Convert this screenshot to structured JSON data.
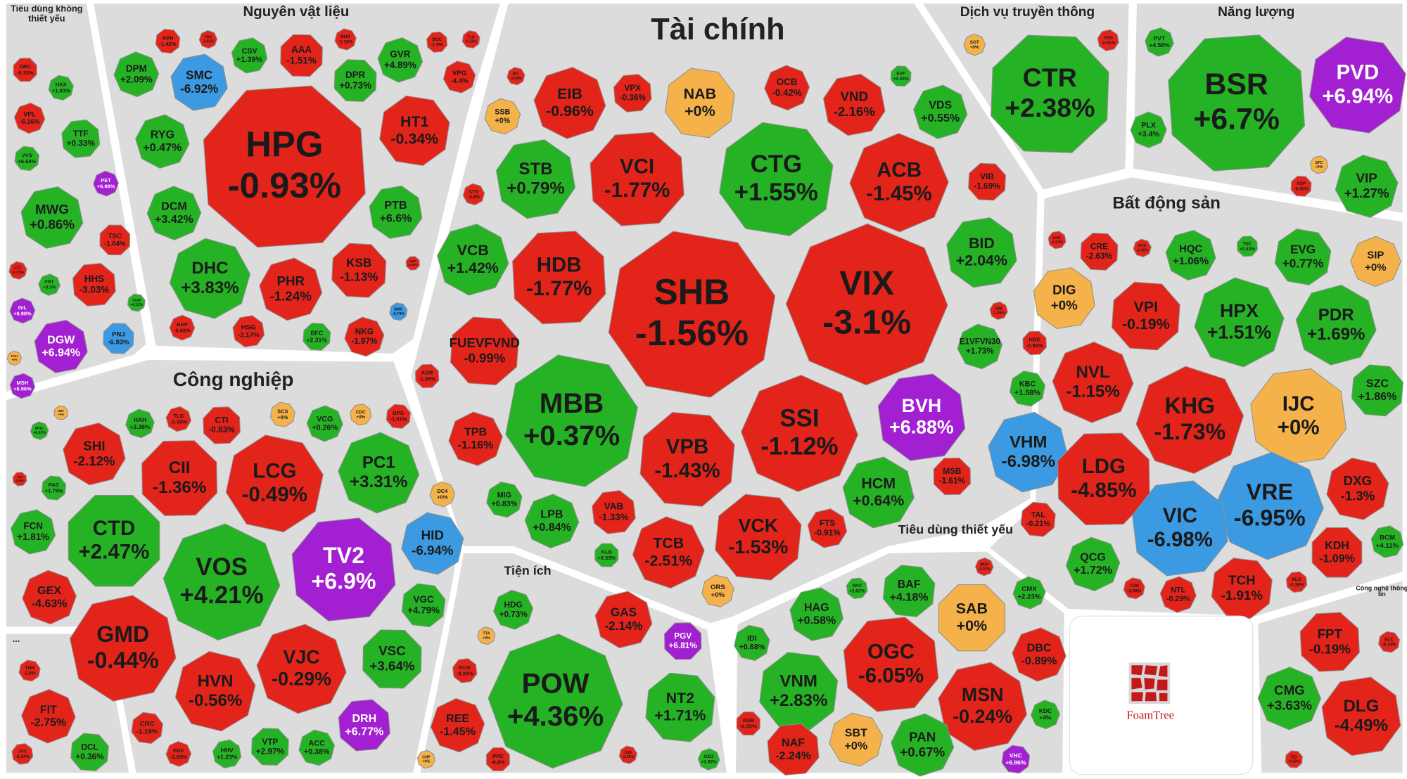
{
  "chart_data": {
    "type": "treemap",
    "groups": [
      {
        "name": "Tiêu dùng không thiết yếu",
        "categories": [
          "DRC",
          "HAX",
          "VPL",
          "TTF",
          "VVS",
          "PET",
          "MWG",
          "TSC",
          "CTF",
          "FRT",
          "HHS",
          "TCM",
          "GIL",
          "DGW",
          "PNJ",
          "DAH",
          "MSH"
        ],
        "values": [
          -0.33,
          1.83,
          -6.16,
          0.33,
          6.68,
          6.88,
          0.86,
          -1.04,
          -0.29,
          3.3,
          -3.03,
          4.12,
          6.99,
          6.94,
          -6.93,
          0,
          6.96
        ],
        "value_labels": [
          "-0.33%",
          "+1.83%",
          "-6.16%",
          "+0.33%",
          "+6.68%",
          "+6.88%",
          "+0.86%",
          "-1.04%",
          "-0.29%",
          "+3.3%",
          "-3.03%",
          "+4.12%",
          "+6.99%",
          "+6.94%",
          "-6.93%",
          "+0%",
          "+6.96%"
        ],
        "colors": [
          "#e3241b",
          "#25b325",
          "#e3241b",
          "#25b325",
          "#25b325",
          "#a21fd2",
          "#25b325",
          "#e3241b",
          "#e3241b",
          "#25b325",
          "#e3241b",
          "#25b325",
          "#a21fd2",
          "#a21fd2",
          "#3b9ae1",
          "#f5b24a",
          "#a21fd2"
        ]
      },
      {
        "name": "Nguyên vật liệu",
        "categories": [
          "APH",
          "TRC",
          "CSV",
          "AAA",
          "DHA",
          "GVR",
          "DGC",
          "TLD",
          "DPM",
          "SMC",
          "DPR",
          "VPG",
          "RYG",
          "HPG",
          "HT1",
          "DCM",
          "PTB",
          "KSB",
          "DHC",
          "PHR",
          "HHP",
          "BMC",
          "HAP",
          "HSG",
          "BFC",
          "NKG"
        ],
        "values": [
          -1.42,
          -1.62,
          1.39,
          -1.51,
          -2.18,
          4.89,
          -1.9,
          -6.12,
          2.09,
          -6.92,
          0.73,
          -4.4,
          0.47,
          -0.93,
          -0.34,
          3.42,
          6.6,
          -1.13,
          3.83,
          -1.24,
          -0.39,
          -6.74,
          -0.92,
          -2.17,
          2.31,
          -1.97
        ],
        "value_labels": [
          "-1.42%",
          "-1.62%",
          "+1.39%",
          "-1.51%",
          "-2.18%",
          "+4.89%",
          "-1.9%",
          "-6.12%",
          "+2.09%",
          "-6.92%",
          "+0.73%",
          "-4.4%",
          "+0.47%",
          "-0.93%",
          "-0.34%",
          "+3.42%",
          "+6.6%",
          "-1.13%",
          "+3.83%",
          "-1.24%",
          "-0.39%",
          "-6.74%",
          "-0.92%",
          "-2.17%",
          "+2.31%",
          "-1.97%"
        ],
        "colors": [
          "#e3241b",
          "#e3241b",
          "#25b325",
          "#e3241b",
          "#e3241b",
          "#25b325",
          "#e3241b",
          "#e3241b",
          "#25b325",
          "#3b9ae1",
          "#25b325",
          "#e3241b",
          "#25b325",
          "#e3241b",
          "#e3241b",
          "#25b325",
          "#25b325",
          "#e3241b",
          "#25b325",
          "#e3241b",
          "#e3241b",
          "#3b9ae1",
          "#e3241b",
          "#e3241b",
          "#25b325",
          "#e3241b"
        ]
      },
      {
        "name": "Tài chính",
        "categories": [
          "BIC",
          "EIB",
          "VPX",
          "NAB",
          "OCB",
          "VND",
          "EVF",
          "SSB",
          "VDS",
          "VCI",
          "CTG",
          "ACB",
          "STB",
          "VIB",
          "CTS",
          "VCB",
          "HDB",
          "SHB",
          "VIX",
          "BID",
          "FUEVFVND",
          "E1VFVN30",
          "BMI",
          "AGR",
          "MBB",
          "SSI",
          "BVH",
          "VPB",
          "TPB",
          "HCM",
          "MSB",
          "MIG",
          "LPB",
          "VAB",
          "VCK",
          "TCB",
          "FTS",
          "KLB",
          "ORS"
        ],
        "values": [
          -3.08,
          -0.96,
          -0.36,
          0,
          -0.42,
          -2.16,
          0.43,
          0,
          0.55,
          -1.77,
          1.55,
          -1.45,
          0.79,
          -1.69,
          -0.8,
          1.42,
          -1.77,
          -1.56,
          -3.1,
          2.04,
          -0.99,
          1.73,
          -1.36,
          -1.85,
          0.37,
          -1.12,
          6.88,
          -1.43,
          -1.16,
          0.64,
          -1.61,
          0.83,
          0.84,
          -1.33,
          -1.53,
          -2.51,
          -0.91,
          0.33,
          0
        ],
        "value_labels": [
          "-3.08%",
          "-0.96%",
          "-0.36%",
          "+0%",
          "-0.42%",
          "-2.16%",
          "+0.43%",
          "+0%",
          "+0.55%",
          "-1.77%",
          "+1.55%",
          "-1.45%",
          "+0.79%",
          "-1.69%",
          "-0.8%",
          "+1.42%",
          "-1.77%",
          "-1.56%",
          "-3.1%",
          "+2.04%",
          "-0.99%",
          "+1.73%",
          "-1.36%",
          "-1.85%",
          "+0.37%",
          "-1.12%",
          "+6.88%",
          "-1.43%",
          "-1.16%",
          "+0.64%",
          "-1.61%",
          "+0.83%",
          "+0.84%",
          "-1.33%",
          "-1.53%",
          "-2.51%",
          "-0.91%",
          "+0.33%",
          "+0%"
        ],
        "colors": [
          "#e3241b",
          "#e3241b",
          "#e3241b",
          "#f5b24a",
          "#e3241b",
          "#e3241b",
          "#25b325",
          "#f5b24a",
          "#25b325",
          "#e3241b",
          "#25b325",
          "#e3241b",
          "#25b325",
          "#e3241b",
          "#e3241b",
          "#25b325",
          "#e3241b",
          "#e3241b",
          "#e3241b",
          "#25b325",
          "#e3241b",
          "#25b325",
          "#e3241b",
          "#e3241b",
          "#25b325",
          "#e3241b",
          "#a21fd2",
          "#e3241b",
          "#e3241b",
          "#25b325",
          "#e3241b",
          "#25b325",
          "#25b325",
          "#e3241b",
          "#e3241b",
          "#e3241b",
          "#e3241b",
          "#25b325",
          "#f5b24a"
        ]
      },
      {
        "name": "Dịch vụ truyền thông",
        "categories": [
          "SGT",
          "YEG",
          "CTR"
        ],
        "values": [
          0,
          -2.61,
          2.38
        ],
        "value_labels": [
          "+0%",
          "-2.61%",
          "+2.38%"
        ],
        "colors": [
          "#f5b24a",
          "#e3241b",
          "#25b325"
        ]
      },
      {
        "name": "Năng lượng",
        "categories": [
          "PVT",
          "BSR",
          "PVD",
          "PLX",
          "SFC",
          "ASP",
          "VIP"
        ],
        "values": [
          4.58,
          6.7,
          6.94,
          3.4,
          0,
          -0.42,
          1.27
        ],
        "value_labels": [
          "+4.58%",
          "+6.7%",
          "+6.94%",
          "+3.4%",
          "+0%",
          "-0.42%",
          "+1.27%"
        ],
        "colors": [
          "#25b325",
          "#25b325",
          "#a21fd2",
          "#25b325",
          "#f5b24a",
          "#e3241b",
          "#25b325"
        ]
      },
      {
        "name": "Bất động sản",
        "categories": [
          "LHG",
          "CRE",
          "DXS",
          "HQC",
          "TDC",
          "EVG",
          "SIP",
          "DIG",
          "VPI",
          "HPX",
          "PDR",
          "HDC",
          "KBC",
          "NVL",
          "IJC",
          "SZC",
          "KHG",
          "VHM",
          "LDG",
          "DXG",
          "VRE",
          "VIC",
          "TAL",
          "QCG",
          "BCM",
          "KDH",
          "TDH",
          "NTL",
          "NLG",
          "TCH"
        ],
        "values": [
          -1.03,
          -2.63,
          -2.36,
          1.06,
          0.43,
          0.77,
          0,
          0,
          -0.19,
          1.51,
          1.69,
          -0.92,
          1.58,
          -1.15,
          0,
          1.86,
          -1.73,
          -6.98,
          -4.85,
          -1.3,
          -6.95,
          -6.98,
          -0.21,
          1.72,
          4.11,
          -1.09,
          -3.98,
          -0.29,
          -2.38,
          -1.91
        ],
        "value_labels": [
          "-1.03%",
          "-2.63%",
          "-2.36%",
          "+1.06%",
          "+0.43%",
          "+0.77%",
          "+0%",
          "+0%",
          "-0.19%",
          "+1.51%",
          "+1.69%",
          "-0.92%",
          "+1.58%",
          "-1.15%",
          "+0%",
          "+1.86%",
          "-1.73%",
          "-6.98%",
          "-4.85%",
          "-1.3%",
          "-6.95%",
          "-6.98%",
          "-0.21%",
          "+1.72%",
          "+4.11%",
          "-1.09%",
          "-3.98%",
          "-0.29%",
          "-2.38%",
          "-1.91%"
        ],
        "colors": [
          "#e3241b",
          "#e3241b",
          "#e3241b",
          "#25b325",
          "#25b325",
          "#25b325",
          "#f5b24a",
          "#f5b24a",
          "#e3241b",
          "#25b325",
          "#25b325",
          "#e3241b",
          "#25b325",
          "#e3241b",
          "#f5b24a",
          "#25b325",
          "#e3241b",
          "#3b9ae1",
          "#e3241b",
          "#e3241b",
          "#3b9ae1",
          "#3b9ae1",
          "#e3241b",
          "#25b325",
          "#25b325",
          "#e3241b",
          "#e3241b",
          "#e3241b",
          "#e3241b",
          "#e3241b"
        ]
      },
      {
        "name": "Công nghệ thông tin",
        "categories": [
          "FPT",
          "ELC",
          "CMG",
          "DLG",
          "ITD"
        ],
        "values": [
          -0.19,
          -5.74,
          3.63,
          -4.49,
          -0.62
        ],
        "value_labels": [
          "-0.19%",
          "-5.74%",
          "+3.63%",
          "-4.49%",
          "-0.62%"
        ],
        "colors": [
          "#e3241b",
          "#e3241b",
          "#25b325",
          "#e3241b",
          "#e3241b"
        ]
      },
      {
        "name": "Công nghiệp",
        "categories": [
          "SRF",
          "HAH",
          "TLG",
          "CTI",
          "SCS",
          "VCG",
          "CDC",
          "DPG",
          "MHC",
          "SHI",
          "CII",
          "LCG",
          "PC1",
          "CIG",
          "PAC",
          "DC4",
          "FCN",
          "CTD",
          "HID",
          "VOS",
          "TV2",
          "VGC",
          "GEX",
          "GMD",
          "VSC",
          "HVN",
          "VJC",
          "DRH",
          "CRC",
          "PDV",
          "HHV",
          "VTP",
          "ACC"
        ],
        "values": [
          0,
          3.36,
          -0.39,
          -0.83,
          0,
          0.26,
          0,
          -1.01,
          6.45,
          -2.12,
          -1.36,
          -0.49,
          3.31,
          -0.46,
          1.75,
          0,
          1.81,
          2.47,
          -6.94,
          4.21,
          6.9,
          4.79,
          -4.63,
          -0.44,
          3.64,
          -0.56,
          -0.29,
          6.77,
          -1.19,
          -1.83,
          1.23,
          2.97,
          0.38
        ],
        "value_labels": [
          "+0%",
          "+3.36%",
          "-0.39%",
          "-0.83%",
          "+0%",
          "+0.26%",
          "+0%",
          "-1.01%",
          "+6.45%",
          "-2.12%",
          "-1.36%",
          "-0.49%",
          "+3.31%",
          "-0.46%",
          "+1.75%",
          "+0%",
          "+1.81%",
          "+2.47%",
          "-6.94%",
          "+4.21%",
          "+6.9%",
          "+4.79%",
          "-4.63%",
          "-0.44%",
          "+3.64%",
          "-0.56%",
          "-0.29%",
          "+6.77%",
          "-1.19%",
          "-1.83%",
          "+1.23%",
          "+2.97%",
          "+0.38%"
        ],
        "colors": [
          "#f5b24a",
          "#25b325",
          "#e3241b",
          "#e3241b",
          "#f5b24a",
          "#25b325",
          "#f5b24a",
          "#e3241b",
          "#25b325",
          "#e3241b",
          "#e3241b",
          "#e3241b",
          "#25b325",
          "#e3241b",
          "#25b325",
          "#f5b24a",
          "#25b325",
          "#25b325",
          "#3b9ae1",
          "#25b325",
          "#a21fd2",
          "#25b325",
          "#e3241b",
          "#e3241b",
          "#25b325",
          "#e3241b",
          "#e3241b",
          "#a21fd2",
          "#e3241b",
          "#e3241b",
          "#25b325",
          "#25b325",
          "#25b325"
        ]
      },
      {
        "name": "...",
        "categories": [
          "TNH",
          "FIT",
          "JVC",
          "DCL"
        ],
        "values": [
          -2.8,
          -2.75,
          -6.24,
          0.36
        ],
        "value_labels": [
          "-2.8%",
          "-2.75%",
          "-6.24%",
          "+0.36%"
        ],
        "colors": [
          "#e3241b",
          "#e3241b",
          "#e3241b",
          "#25b325"
        ]
      },
      {
        "name": "Tiện ích",
        "categories": [
          "HDG",
          "GAS",
          "PGV",
          "TTA",
          "POW",
          "KOS",
          "NT2",
          "REE",
          "CHP",
          "PPC",
          "SJD",
          "GEG"
        ],
        "values": [
          0.73,
          -2.14,
          6.81,
          0,
          4.36,
          -0.26,
          1.71,
          -1.45,
          0,
          -0.8,
          -0.36,
          1.02
        ],
        "value_labels": [
          "+0.73%",
          "-2.14%",
          "+6.81%",
          "+0%",
          "+4.36%",
          "-0.26%",
          "+1.71%",
          "-1.45%",
          "+0%",
          "-0.8%",
          "-0.36%",
          "+1.02%"
        ],
        "colors": [
          "#25b325",
          "#e3241b",
          "#a21fd2",
          "#f5b24a",
          "#25b325",
          "#e3241b",
          "#25b325",
          "#e3241b",
          "#f5b24a",
          "#e3241b",
          "#e3241b",
          "#25b325"
        ]
      },
      {
        "name": "Tiêu dùng thiết yếu",
        "categories": [
          "MCH",
          "ANV",
          "BAF",
          "CMX",
          "HAG",
          "SAB",
          "IDI",
          "DBC",
          "OGC",
          "VNM",
          "KDC",
          "MSN",
          "ASM",
          "SBT",
          "PAN",
          "NAF",
          "VHC"
        ],
        "values": [
          -0.37,
          2.62,
          4.18,
          2.23,
          0.58,
          0,
          0.88,
          -0.89,
          -6.05,
          2.83,
          4,
          -0.24,
          -0.55,
          0,
          0.67,
          -2.24,
          6.96
        ],
        "value_labels": [
          "-0.37%",
          "+2.62%",
          "+4.18%",
          "+2.23%",
          "+0.58%",
          "+0%",
          "+0.88%",
          "-0.89%",
          "-6.05%",
          "+2.83%",
          "+4%",
          "-0.24%",
          "-0.55%",
          "+0%",
          "+0.67%",
          "-2.24%",
          "+6.96%"
        ],
        "colors": [
          "#e3241b",
          "#25b325",
          "#25b325",
          "#25b325",
          "#25b325",
          "#f5b24a",
          "#25b325",
          "#e3241b",
          "#e3241b",
          "#25b325",
          "#25b325",
          "#e3241b",
          "#e3241b",
          "#f5b24a",
          "#25b325",
          "#e3241b",
          "#a21fd2"
        ]
      }
    ]
  },
  "logo": "FoamTree"
}
